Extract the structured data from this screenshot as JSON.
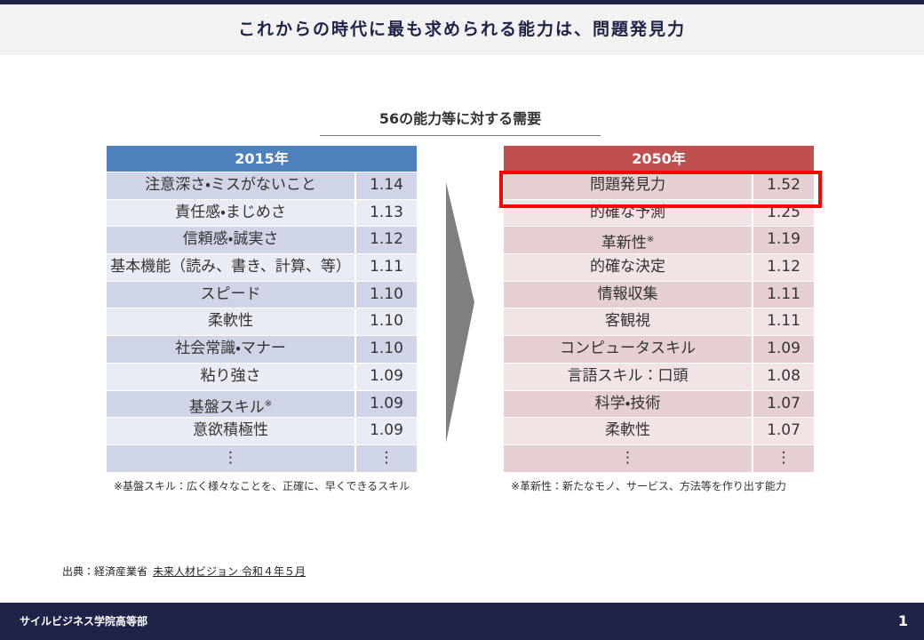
{
  "header": {
    "title": "これからの時代に最も求められる能力は、問題発見力"
  },
  "subtitle": "56の能力等に対する需要",
  "tables": [
    {
      "header": "2015年",
      "rows": [
        {
          "label": "注意深さ・ミスがないこと",
          "value": "1.14"
        },
        {
          "label": "責任感・まじめさ",
          "value": "1.13"
        },
        {
          "label": "信頼感・誠実さ",
          "value": "1.12"
        },
        {
          "label": "基本機能（読み、書き、計算、等）",
          "value": "1.11"
        },
        {
          "label": "スピード",
          "value": "1.10"
        },
        {
          "label": "柔軟性",
          "value": "1.10"
        },
        {
          "label": "社会常識・マナー",
          "value": "1.10"
        },
        {
          "label": "粘り強さ",
          "value": "1.09"
        },
        {
          "label": "基盤スキル",
          "sup": "※",
          "value": "1.09"
        },
        {
          "label": "意欲積極性",
          "value": "1.09"
        },
        {
          "label": "⋮",
          "value": "⋮"
        }
      ],
      "note": "※基盤スキル：広く様々なことを、正確に、早くできるスキル"
    },
    {
      "header": "2050年",
      "rows": [
        {
          "label": "問題発見力",
          "value": "1.52"
        },
        {
          "label": "的確な予測",
          "value": "1.25"
        },
        {
          "label": "革新性",
          "sup": "※",
          "value": "1.19"
        },
        {
          "label": "的確な決定",
          "value": "1.12"
        },
        {
          "label": "情報収集",
          "value": "1.11"
        },
        {
          "label": "客観視",
          "value": "1.11"
        },
        {
          "label": "コンピュータスキル",
          "value": "1.09"
        },
        {
          "label": "言語スキル：口頭",
          "value": "1.08"
        },
        {
          "label": "科学・技術",
          "value": "1.07"
        },
        {
          "label": "柔軟性",
          "value": "1.07"
        },
        {
          "label": "⋮",
          "value": "⋮"
        }
      ],
      "note": "※革新性：新たなモノ、サービス、方法等を作り出す能力"
    }
  ],
  "source": {
    "prefix": "出典：経済産業省",
    "link": "未来人材ビジョン 令和４年５月"
  },
  "footer": {
    "organization": "サイルビジネス学院高等部",
    "page": "1"
  }
}
